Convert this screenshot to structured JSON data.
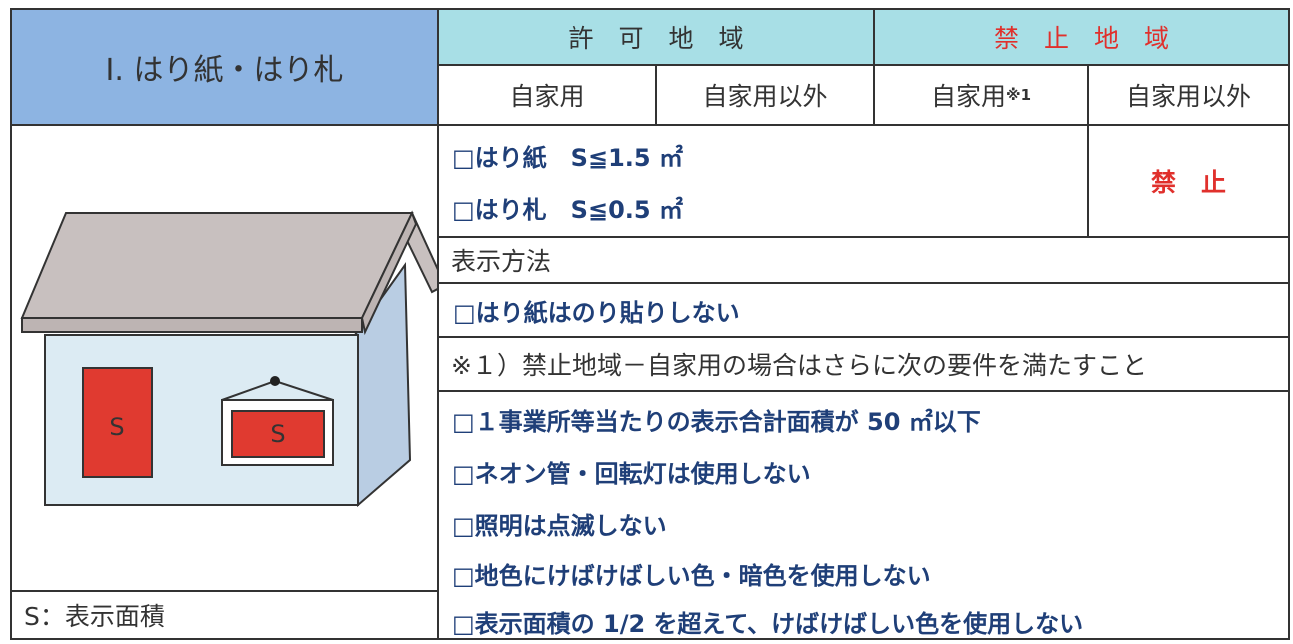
{
  "header": {
    "title": "Ⅰ. はり紙・はり札",
    "permitted": "許　可　地　域",
    "prohibited": "禁　止　地　域"
  },
  "columns": [
    "自家用",
    "自家用以外",
    "自家用",
    "自家用以外"
  ],
  "column_note": "※1",
  "allowed": [
    "□はり紙　S≦1.5 ㎡",
    "□はり札　S≦0.5 ㎡"
  ],
  "prohibited_label": "禁　止",
  "method": {
    "title": "表示方法",
    "items": [
      "□はり紙はのり貼りしない"
    ]
  },
  "note": {
    "title": "※１）禁止地域－自家用の場合はさらに次の要件を満たすこと",
    "items": [
      "□１事業所等当たりの表示合計面積が 50 ㎡以下",
      "□ネオン管・回転灯は使用しない",
      "□照明は点滅しない",
      "□地色にけばけばしい色・暗色を使用しない",
      "□表示面積の 1/2 を超えて、けばけばしい色を使用しない"
    ]
  },
  "illustration": {
    "sign_label": "S",
    "legend": "S：表示面積"
  }
}
